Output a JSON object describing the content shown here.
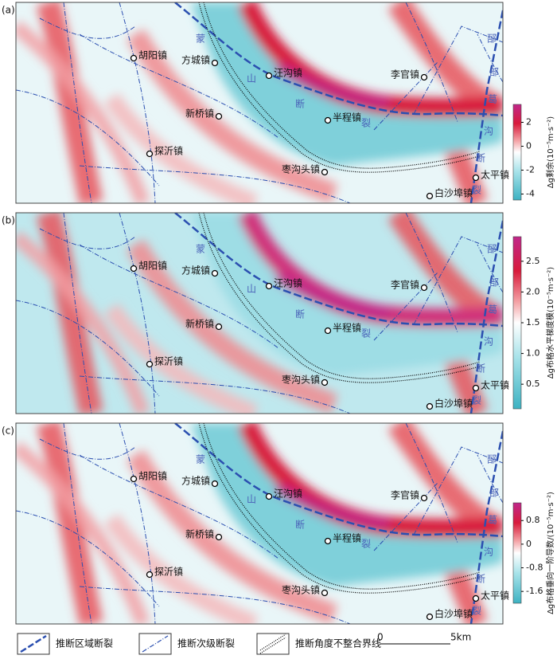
{
  "panels": [
    {
      "label": "(a)",
      "towns": [
        "胡阳镇",
        "方城镇",
        "汪沟镇",
        "李官镇",
        "新桥镇",
        "半程镇",
        "探沂镇",
        "枣沟头镇",
        "太平镇",
        "白沙埠镇"
      ],
      "fault_labels": [
        "蒙",
        "山",
        "断",
        "裂",
        "郚",
        "部",
        "葛",
        "沟",
        "断",
        "裂"
      ],
      "colorbar": {
        "label": "Δg剩余(10⁻⁵m·s⁻²)",
        "lim": [
          -4.5,
          3.5
        ],
        "ticks": [
          2,
          0,
          -2,
          -4
        ]
      }
    },
    {
      "label": "(b)",
      "towns": [
        "胡阳镇",
        "方城镇",
        "汪沟镇",
        "李官镇",
        "新桥镇",
        "半程镇",
        "探沂镇",
        "枣沟头镇",
        "太平镇",
        "白沙埠镇"
      ],
      "fault_labels": [
        "蒙",
        "山",
        "断",
        "裂",
        "郚",
        "部",
        "葛",
        "沟",
        "断",
        "裂"
      ],
      "colorbar": {
        "label": "Δg布格水平梯度模(10⁻⁵m·s⁻²)",
        "lim": [
          0.1,
          2.9
        ],
        "ticks": [
          2.5,
          {
            "value": 2,
            "label": "2.0"
          },
          1.5,
          {
            "value": 1,
            "label": "1.0"
          },
          0.5
        ]
      }
    },
    {
      "label": "(c)",
      "towns": [
        "胡阳镇",
        "方城镇",
        "汪沟镇",
        "李官镇",
        "新桥镇",
        "半程镇",
        "探沂镇",
        "枣沟头镇",
        "太平镇",
        "白沙埠镇"
      ],
      "fault_labels": [
        "蒙",
        "山",
        "断",
        "裂",
        "郚",
        "部",
        "葛",
        "沟",
        "断",
        "裂"
      ],
      "colorbar": {
        "label": "Δg布格垂向一阶导数/(10⁻⁵m·s⁻²)",
        "lim": [
          -2,
          1.4
        ],
        "ticks": [
          0.8,
          0,
          -0.8,
          -1.6
        ]
      }
    }
  ],
  "legend": [
    "推断区域断裂",
    "推断次级断裂",
    "推断角度不整合界线"
  ],
  "scale_bar": {
    "start": "0",
    "end": "5km"
  }
}
